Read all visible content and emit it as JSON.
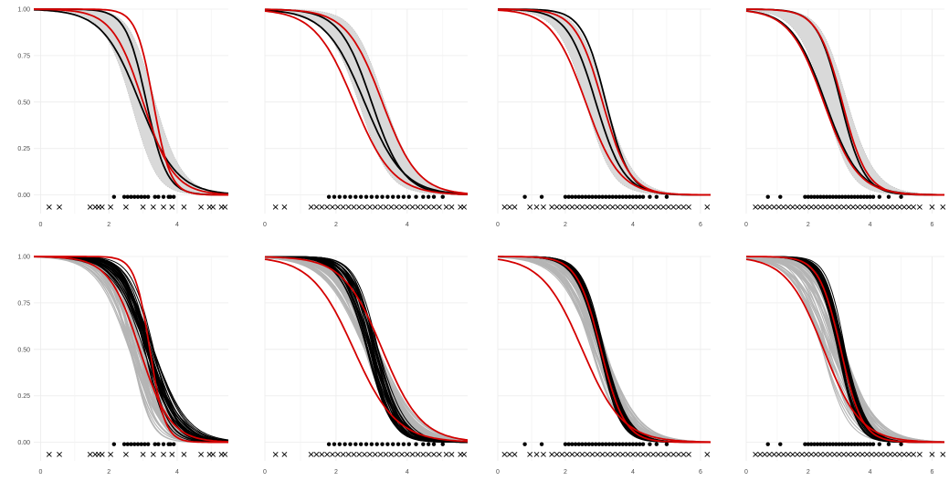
{
  "chart_data": [
    {
      "type": "line",
      "row": "top",
      "xlim": [
        -0.2,
        5.5
      ],
      "ylim": [
        -0.1,
        1.0
      ],
      "xticks": [
        0,
        2,
        4
      ],
      "xtick_labels": [
        "0",
        "2",
        "4"
      ],
      "yticks": [
        0,
        0.25,
        0.5,
        0.75,
        1
      ],
      "ytick_labels": [
        "0.00",
        "0.25",
        "0.50",
        "0.75",
        "1.00"
      ],
      "show_y_labels": true,
      "grid": true,
      "series": [
        {
          "color": "#d40000",
          "kind": "sigmoid",
          "mu": 3.0,
          "s": 0.45,
          "x": [
            -0.2,
            5.5
          ]
        },
        {
          "color": "#d40000",
          "kind": "sigmoid",
          "mu": 3.3,
          "s": 0.25,
          "x": [
            -0.2,
            5.5
          ]
        },
        {
          "color": "#000000",
          "kind": "sigmoid",
          "mu": 3.1,
          "s": 0.3,
          "x": [
            -0.2,
            5.5
          ]
        },
        {
          "color": "#000000",
          "kind": "sigmoid",
          "mu": 2.9,
          "s": 0.55,
          "x": [
            -0.2,
            5.5
          ]
        }
      ],
      "band": {
        "mu": 3.0,
        "s": 0.45,
        "width": 0.22
      },
      "events_dots": [
        2.15,
        2.45,
        2.55,
        2.65,
        2.75,
        2.85,
        2.95,
        3.05,
        3.15,
        3.35,
        3.45,
        3.6,
        3.75,
        3.8,
        3.9
      ],
      "censored_x": [
        0.25,
        0.55,
        1.45,
        1.6,
        1.7,
        1.8,
        2.05,
        2.5,
        3.0,
        3.3,
        3.6,
        3.85,
        4.2,
        4.7,
        4.95,
        5.05,
        5.3,
        5.4
      ]
    },
    {
      "type": "line",
      "row": "top",
      "xlim": [
        0,
        5.7
      ],
      "ylim": [
        -0.1,
        1.0
      ],
      "xticks": [
        0,
        2,
        4
      ],
      "xtick_labels": [
        "0",
        "2",
        "4"
      ],
      "yticks": [
        0,
        0.25,
        0.5,
        0.75,
        1
      ],
      "ytick_labels": [
        "0.00",
        "0.25",
        "0.50",
        "0.75",
        "1.00"
      ],
      "show_y_labels": false,
      "grid": true,
      "series": [
        {
          "color": "#d40000",
          "kind": "sigmoid",
          "mu": 2.5,
          "s": 0.55,
          "x": [
            0,
            5.7
          ]
        },
        {
          "color": "#d40000",
          "kind": "sigmoid",
          "mu": 3.3,
          "s": 0.5,
          "x": [
            0,
            5.7
          ]
        },
        {
          "color": "#000000",
          "kind": "sigmoid",
          "mu": 3.0,
          "s": 0.45,
          "x": [
            0,
            5.7
          ]
        },
        {
          "color": "#000000",
          "kind": "sigmoid",
          "mu": 2.8,
          "s": 0.55,
          "x": [
            0,
            5.7
          ]
        }
      ],
      "band": {
        "mu": 3.0,
        "s": 0.5,
        "width": 0.2
      },
      "events_dots": [
        1.8,
        1.95,
        2.1,
        2.25,
        2.4,
        2.55,
        2.7,
        2.85,
        3.0,
        3.15,
        3.3,
        3.45,
        3.6,
        3.75,
        3.9,
        4.05,
        4.25,
        4.45,
        4.6,
        4.75,
        5.0
      ],
      "censored_x": [
        0.3,
        0.55,
        1.3,
        1.45,
        1.6,
        1.75,
        1.9,
        2.05,
        2.2,
        2.35,
        2.5,
        2.65,
        2.8,
        2.95,
        3.1,
        3.25,
        3.4,
        3.55,
        3.7,
        3.85,
        4.0,
        4.15,
        4.3,
        4.45,
        4.6,
        4.75,
        4.9,
        5.1,
        5.25,
        5.5,
        5.6
      ]
    },
    {
      "type": "line",
      "row": "top",
      "xlim": [
        0,
        6.3
      ],
      "ylim": [
        -0.1,
        1.0
      ],
      "xticks": [
        0,
        2,
        4,
        6
      ],
      "xtick_labels": [
        "0",
        "2",
        "4",
        "6"
      ],
      "yticks": [
        0,
        0.25,
        0.5,
        0.75,
        1
      ],
      "ytick_labels": [
        "0.00",
        "0.25",
        "0.50",
        "0.75",
        "1.00"
      ],
      "show_y_labels": false,
      "grid": true,
      "series": [
        {
          "color": "#d40000",
          "kind": "sigmoid",
          "mu": 2.6,
          "s": 0.5,
          "x": [
            0,
            6.3
          ]
        },
        {
          "color": "#d40000",
          "kind": "sigmoid",
          "mu": 3.1,
          "s": 0.4,
          "x": [
            0,
            6.3
          ]
        },
        {
          "color": "#000000",
          "kind": "sigmoid",
          "mu": 2.9,
          "s": 0.42,
          "x": [
            0,
            6.3
          ]
        },
        {
          "color": "#000000",
          "kind": "sigmoid",
          "mu": 3.2,
          "s": 0.35,
          "x": [
            0,
            6.3
          ]
        }
      ],
      "band": {
        "mu": 2.9,
        "s": 0.45,
        "width": 0.18
      },
      "events_dots": [
        0.8,
        1.3,
        2.0,
        2.1,
        2.2,
        2.3,
        2.4,
        2.5,
        2.6,
        2.7,
        2.8,
        2.9,
        3.0,
        3.1,
        3.2,
        3.3,
        3.4,
        3.5,
        3.6,
        3.7,
        3.8,
        3.9,
        4.0,
        4.1,
        4.2,
        4.3,
        4.5,
        4.7,
        5.0
      ],
      "censored_x": [
        0.2,
        0.35,
        0.5,
        0.95,
        1.15,
        1.35,
        1.6,
        1.75,
        1.9,
        2.05,
        2.2,
        2.35,
        2.5,
        2.65,
        2.8,
        2.95,
        3.1,
        3.25,
        3.4,
        3.55,
        3.7,
        3.85,
        4.0,
        4.15,
        4.3,
        4.45,
        4.6,
        4.75,
        4.9,
        5.05,
        5.2,
        5.35,
        5.5,
        5.65,
        6.2
      ]
    },
    {
      "type": "line",
      "row": "top",
      "xlim": [
        0,
        6.4
      ],
      "ylim": [
        -0.1,
        1.0
      ],
      "xticks": [
        0,
        2,
        4,
        6
      ],
      "xtick_labels": [
        "0",
        "2",
        "4",
        "6"
      ],
      "yticks": [
        0,
        0.25,
        0.5,
        0.75,
        1
      ],
      "ytick_labels": [
        "0.00",
        "0.25",
        "0.50",
        "0.75",
        "1.00"
      ],
      "show_y_labels": false,
      "grid": true,
      "series": [
        {
          "color": "#d40000",
          "kind": "sigmoid",
          "mu": 2.5,
          "s": 0.55,
          "x": [
            0,
            6.4
          ]
        },
        {
          "color": "#d40000",
          "kind": "sigmoid",
          "mu": 3.1,
          "s": 0.4,
          "x": [
            0,
            6.4
          ]
        },
        {
          "color": "#000000",
          "kind": "sigmoid",
          "mu": 2.55,
          "s": 0.55,
          "x": [
            0,
            6.4
          ]
        },
        {
          "color": "#000000",
          "kind": "sigmoid",
          "mu": 3.05,
          "s": 0.38,
          "x": [
            0,
            6.4
          ]
        }
      ],
      "band": {
        "mu": 2.9,
        "s": 0.5,
        "width": 0.2
      },
      "events_dots": [
        0.7,
        1.1,
        1.9,
        2.0,
        2.1,
        2.2,
        2.3,
        2.4,
        2.5,
        2.6,
        2.7,
        2.8,
        2.9,
        3.0,
        3.1,
        3.2,
        3.3,
        3.4,
        3.5,
        3.6,
        3.7,
        3.8,
        3.9,
        4.0,
        4.1,
        4.3,
        4.6,
        5.0
      ],
      "censored_x": [
        0.3,
        0.45,
        0.6,
        0.75,
        0.9,
        1.05,
        1.2,
        1.35,
        1.5,
        1.65,
        1.8,
        1.95,
        2.1,
        2.25,
        2.4,
        2.55,
        2.7,
        2.85,
        3.0,
        3.15,
        3.3,
        3.45,
        3.6,
        3.75,
        3.9,
        4.05,
        4.2,
        4.35,
        4.5,
        4.65,
        4.8,
        4.95,
        5.1,
        5.25,
        5.4,
        5.6,
        6.0,
        6.35
      ]
    },
    {
      "type": "line",
      "row": "bottom",
      "xlim": [
        -0.2,
        5.5
      ],
      "ylim": [
        -0.1,
        1.0
      ],
      "xticks": [
        0,
        2,
        4
      ],
      "xtick_labels": [
        "0",
        "2",
        "4"
      ],
      "yticks": [
        0,
        0.25,
        0.5,
        0.75,
        1
      ],
      "ytick_labels": [
        "0.00",
        "0.25",
        "0.50",
        "0.75",
        "1.00"
      ],
      "show_y_labels": true,
      "grid": true,
      "series": [
        {
          "color": "#d40000",
          "kind": "sigmoid",
          "mu": 2.9,
          "s": 0.45,
          "x": [
            -0.2,
            5.5
          ]
        },
        {
          "color": "#d40000",
          "kind": "sigmoid",
          "mu": 3.2,
          "s": 0.22,
          "x": [
            -0.2,
            5.5
          ]
        }
      ],
      "ensemble": {
        "gray": {
          "mu_range": [
            2.55,
            3.15
          ],
          "s_range": [
            0.28,
            0.5
          ]
        },
        "black": {
          "mu_range": [
            3.0,
            3.35
          ],
          "s_range": [
            0.3,
            0.55
          ]
        }
      },
      "events_dots": [
        2.15,
        2.45,
        2.55,
        2.65,
        2.75,
        2.85,
        2.95,
        3.05,
        3.15,
        3.35,
        3.45,
        3.6,
        3.75,
        3.8,
        3.9
      ],
      "censored_x": [
        0.25,
        0.55,
        1.45,
        1.6,
        1.7,
        1.8,
        2.05,
        2.5,
        3.0,
        3.3,
        3.6,
        3.85,
        4.2,
        4.7,
        4.95,
        5.05,
        5.3,
        5.4
      ]
    },
    {
      "type": "line",
      "row": "bottom",
      "xlim": [
        0,
        5.7
      ],
      "ylim": [
        -0.1,
        1.0
      ],
      "xticks": [
        0,
        2,
        4
      ],
      "xtick_labels": [
        "0",
        "2",
        "4"
      ],
      "yticks": [
        0,
        0.25,
        0.5,
        0.75,
        1
      ],
      "ytick_labels": [
        "0.00",
        "0.25",
        "0.50",
        "0.75",
        "1.00"
      ],
      "show_y_labels": false,
      "grid": true,
      "series": [
        {
          "color": "#d40000",
          "kind": "sigmoid",
          "mu": 2.5,
          "s": 0.6,
          "x": [
            0,
            5.7
          ]
        },
        {
          "color": "#d40000",
          "kind": "sigmoid",
          "mu": 3.3,
          "s": 0.55,
          "x": [
            0,
            5.7
          ]
        }
      ],
      "ensemble": {
        "gray": {
          "mu_range": [
            2.8,
            3.2
          ],
          "s_range": [
            0.4,
            0.6
          ]
        },
        "black": {
          "mu_range": [
            2.85,
            3.2
          ],
          "s_range": [
            0.3,
            0.42
          ]
        }
      },
      "events_dots": [
        1.8,
        1.95,
        2.1,
        2.25,
        2.4,
        2.55,
        2.7,
        2.85,
        3.0,
        3.15,
        3.3,
        3.45,
        3.6,
        3.75,
        3.9,
        4.05,
        4.25,
        4.45,
        4.6,
        4.75,
        5.0
      ],
      "censored_x": [
        0.3,
        0.55,
        1.3,
        1.45,
        1.6,
        1.75,
        1.9,
        2.05,
        2.2,
        2.35,
        2.5,
        2.65,
        2.8,
        2.95,
        3.1,
        3.25,
        3.4,
        3.55,
        3.7,
        3.85,
        4.0,
        4.15,
        4.3,
        4.45,
        4.6,
        4.75,
        4.9,
        5.1,
        5.25,
        5.5,
        5.6
      ]
    },
    {
      "type": "line",
      "row": "bottom",
      "xlim": [
        0,
        6.3
      ],
      "ylim": [
        -0.1,
        1.0
      ],
      "xticks": [
        0,
        2,
        4,
        6
      ],
      "xtick_labels": [
        "0",
        "2",
        "4",
        "6"
      ],
      "yticks": [
        0,
        0.25,
        0.5,
        0.75,
        1
      ],
      "ytick_labels": [
        "0.00",
        "0.25",
        "0.50",
        "0.75",
        "1.00"
      ],
      "show_y_labels": false,
      "grid": true,
      "series": [
        {
          "color": "#d40000",
          "kind": "sigmoid",
          "mu": 2.5,
          "s": 0.6,
          "x": [
            0,
            6.3
          ]
        },
        {
          "color": "#d40000",
          "kind": "sigmoid",
          "mu": 3.05,
          "s": 0.35,
          "x": [
            0,
            6.3
          ]
        }
      ],
      "ensemble": {
        "gray": {
          "mu_range": [
            2.75,
            3.2
          ],
          "s_range": [
            0.38,
            0.55
          ]
        },
        "black": {
          "mu_range": [
            3.0,
            3.15
          ],
          "s_range": [
            0.3,
            0.38
          ]
        }
      },
      "events_dots": [
        0.8,
        1.3,
        2.0,
        2.1,
        2.2,
        2.3,
        2.4,
        2.5,
        2.6,
        2.7,
        2.8,
        2.9,
        3.0,
        3.1,
        3.2,
        3.3,
        3.4,
        3.5,
        3.6,
        3.7,
        3.8,
        3.9,
        4.0,
        4.1,
        4.2,
        4.3,
        4.5,
        4.7,
        5.0
      ],
      "censored_x": [
        0.2,
        0.35,
        0.5,
        0.95,
        1.15,
        1.35,
        1.6,
        1.75,
        1.9,
        2.05,
        2.2,
        2.35,
        2.5,
        2.65,
        2.8,
        2.95,
        3.1,
        3.25,
        3.4,
        3.55,
        3.7,
        3.85,
        4.0,
        4.15,
        4.3,
        4.45,
        4.6,
        4.75,
        4.9,
        5.05,
        5.2,
        5.35,
        5.5,
        5.65,
        6.2
      ]
    },
    {
      "type": "line",
      "row": "bottom",
      "xlim": [
        0,
        6.4
      ],
      "ylim": [
        -0.1,
        1.0
      ],
      "xticks": [
        0,
        2,
        4,
        6
      ],
      "xtick_labels": [
        "0",
        "2",
        "4",
        "6"
      ],
      "yticks": [
        0,
        0.25,
        0.5,
        0.75,
        1
      ],
      "ytick_labels": [
        "0.00",
        "0.25",
        "0.50",
        "0.75",
        "1.00"
      ],
      "show_y_labels": false,
      "grid": true,
      "series": [
        {
          "color": "#d40000",
          "kind": "sigmoid",
          "mu": 2.5,
          "s": 0.6,
          "x": [
            0,
            6.4
          ]
        },
        {
          "color": "#d40000",
          "kind": "sigmoid",
          "mu": 3.05,
          "s": 0.35,
          "x": [
            0,
            6.4
          ]
        }
      ],
      "ensemble": {
        "gray": {
          "mu_range": [
            2.45,
            3.2
          ],
          "s_range": [
            0.4,
            0.6
          ]
        },
        "black": {
          "mu_range": [
            2.95,
            3.2
          ],
          "s_range": [
            0.28,
            0.38
          ]
        }
      },
      "events_dots": [
        0.7,
        1.1,
        1.9,
        2.0,
        2.1,
        2.2,
        2.3,
        2.4,
        2.5,
        2.6,
        2.7,
        2.8,
        2.9,
        3.0,
        3.1,
        3.2,
        3.3,
        3.4,
        3.5,
        3.6,
        3.7,
        3.8,
        3.9,
        4.0,
        4.1,
        4.3,
        4.6,
        5.0
      ],
      "censored_x": [
        0.3,
        0.45,
        0.6,
        0.75,
        0.9,
        1.05,
        1.2,
        1.35,
        1.5,
        1.65,
        1.8,
        1.95,
        2.1,
        2.25,
        2.4,
        2.55,
        2.7,
        2.85,
        3.0,
        3.15,
        3.3,
        3.45,
        3.6,
        3.75,
        3.9,
        4.05,
        4.2,
        4.35,
        4.5,
        4.65,
        4.8,
        4.95,
        5.1,
        5.25,
        5.4,
        5.6,
        6.0,
        6.35
      ]
    }
  ]
}
